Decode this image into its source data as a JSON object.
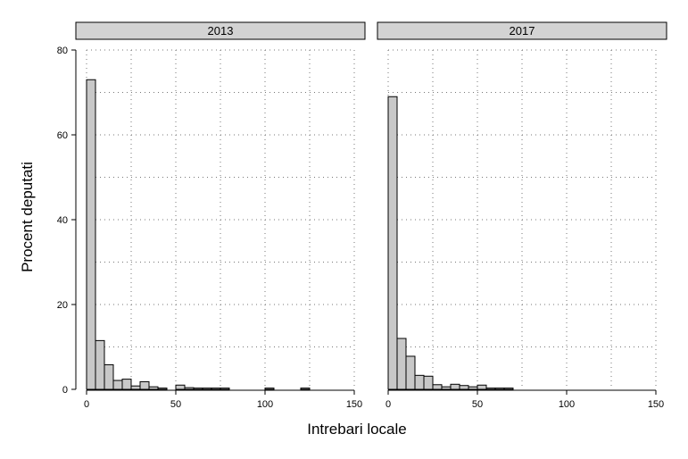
{
  "chart_data": {
    "type": "bar",
    "subtype": "histogram-facets",
    "xlabel": "Intrebari locale",
    "ylabel": "Procent deputati",
    "xlim": [
      0,
      150
    ],
    "ylim": [
      0,
      80
    ],
    "x_ticks": [
      "0",
      "50",
      "100",
      "150"
    ],
    "y_ticks": [
      "0",
      "20",
      "40",
      "60",
      "80"
    ],
    "bin_width": 5,
    "bar_color": "#c8c8c8",
    "strip_color": "#d3d3d3",
    "grid": "dotted",
    "panels": [
      {
        "label": "2013",
        "bins": [
          {
            "x": 0,
            "value": 73
          },
          {
            "x": 5,
            "value": 11.5
          },
          {
            "x": 10,
            "value": 5.8
          },
          {
            "x": 15,
            "value": 2.1
          },
          {
            "x": 20,
            "value": 2.4
          },
          {
            "x": 25,
            "value": 0.8
          },
          {
            "x": 30,
            "value": 1.8
          },
          {
            "x": 35,
            "value": 0.6
          },
          {
            "x": 40,
            "value": 0.3
          },
          {
            "x": 50,
            "value": 1.0
          },
          {
            "x": 55,
            "value": 0.4
          },
          {
            "x": 60,
            "value": 0.3
          },
          {
            "x": 65,
            "value": 0.3
          },
          {
            "x": 70,
            "value": 0.3
          },
          {
            "x": 75,
            "value": 0.3
          },
          {
            "x": 100,
            "value": 0.3
          },
          {
            "x": 120,
            "value": 0.3
          }
        ]
      },
      {
        "label": "2017",
        "bins": [
          {
            "x": 0,
            "value": 69
          },
          {
            "x": 5,
            "value": 12
          },
          {
            "x": 10,
            "value": 7.8
          },
          {
            "x": 15,
            "value": 3.3
          },
          {
            "x": 20,
            "value": 3.1
          },
          {
            "x": 25,
            "value": 1.1
          },
          {
            "x": 30,
            "value": 0.6
          },
          {
            "x": 35,
            "value": 1.2
          },
          {
            "x": 40,
            "value": 0.9
          },
          {
            "x": 45,
            "value": 0.6
          },
          {
            "x": 50,
            "value": 1.0
          },
          {
            "x": 55,
            "value": 0.3
          },
          {
            "x": 60,
            "value": 0.3
          },
          {
            "x": 65,
            "value": 0.3
          }
        ]
      }
    ]
  }
}
